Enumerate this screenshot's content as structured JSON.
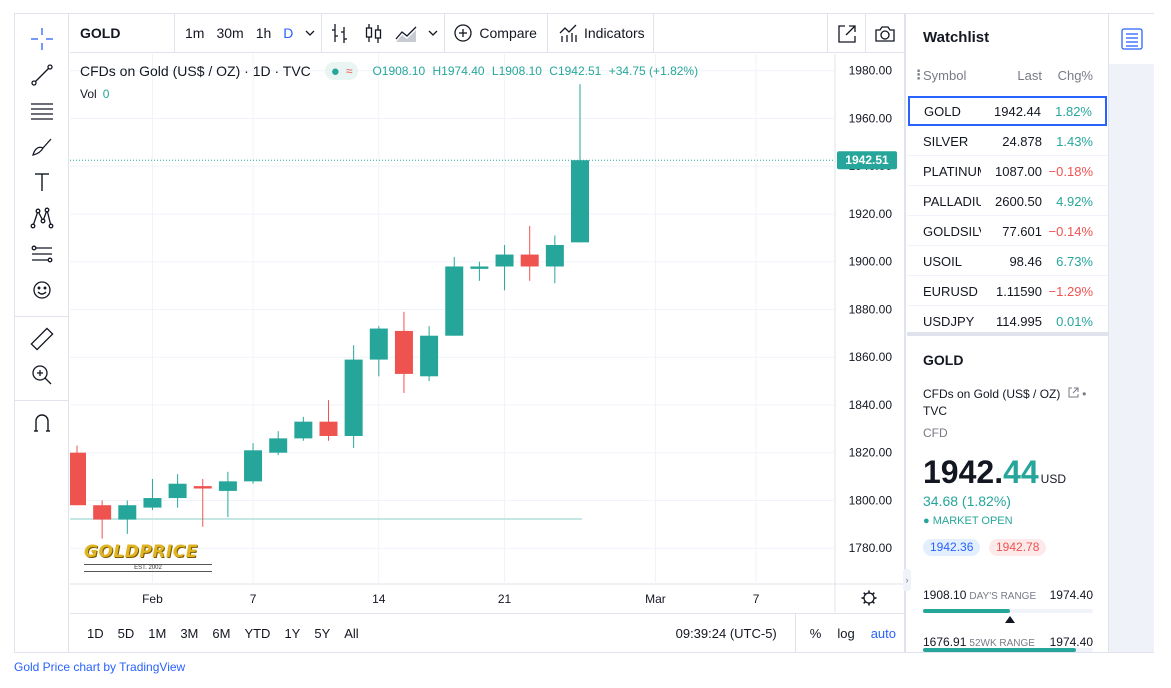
{
  "colors": {
    "up": "#26a69a",
    "down": "#ef5350",
    "accent": "#2962ff",
    "text": "#131722",
    "muted": "#787b86",
    "grid": "#f0f3fa"
  },
  "left_toolbar": {
    "tools": [
      {
        "name": "crosshair-icon"
      },
      {
        "name": "trend-line-icon"
      },
      {
        "name": "fib-retracement-icon"
      },
      {
        "name": "brush-icon"
      },
      {
        "name": "text-tool-icon"
      },
      {
        "name": "pattern-icon"
      },
      {
        "name": "prediction-icon"
      },
      {
        "name": "emoji-icon"
      },
      {
        "name": "ruler-icon"
      },
      {
        "name": "zoom-in-icon"
      },
      {
        "name": "magnet-icon"
      }
    ]
  },
  "top_toolbar": {
    "symbol": "GOLD",
    "intervals": [
      "1m",
      "30m",
      "1h",
      "D"
    ],
    "active_interval": "D",
    "compare_label": "Compare",
    "indicators_label": "Indicators"
  },
  "legend": {
    "title": "CFDs on Gold (US$ / OZ) · 1D · TVC",
    "market_symbol": "≈",
    "open": "O1908.10",
    "high": "H1974.40",
    "low": "L1908.10",
    "close": "C1942.51",
    "change": "+34.75 (+1.82%)",
    "vol_label": "Vol",
    "vol_value": "0"
  },
  "logo": {
    "brand": "GOLDPRICE",
    "tagline": "EST. 2002"
  },
  "chart_data": {
    "type": "candlestick",
    "y_ticks": [
      1780,
      1800,
      1820,
      1840,
      1860,
      1880,
      1900,
      1920,
      1940,
      1960,
      1980
    ],
    "ylim": [
      1765,
      1987
    ],
    "x_ticks": [
      {
        "label": "Feb",
        "index": 3
      },
      {
        "label": "7",
        "index": 7
      },
      {
        "label": "14",
        "index": 12
      },
      {
        "label": "21",
        "index": 17
      },
      {
        "label": "Mar",
        "index": 23
      },
      {
        "label": "7",
        "index": 27
      }
    ],
    "last_price_label": "1942.51",
    "last_price": 1942.51,
    "candles": [
      {
        "o": 1820,
        "h": 1823,
        "l": 1798,
        "c": 1798
      },
      {
        "o": 1798,
        "h": 1800,
        "l": 1784,
        "c": 1792
      },
      {
        "o": 1792,
        "h": 1800,
        "l": 1786,
        "c": 1798
      },
      {
        "o": 1797,
        "h": 1809,
        "l": 1796,
        "c": 1801
      },
      {
        "o": 1801,
        "h": 1811,
        "l": 1797,
        "c": 1807
      },
      {
        "o": 1806,
        "h": 1809,
        "l": 1789,
        "c": 1805
      },
      {
        "o": 1804,
        "h": 1812,
        "l": 1793,
        "c": 1808
      },
      {
        "o": 1808,
        "h": 1824,
        "l": 1807,
        "c": 1821
      },
      {
        "o": 1820,
        "h": 1829,
        "l": 1819,
        "c": 1826
      },
      {
        "o": 1826,
        "h": 1835,
        "l": 1825,
        "c": 1833
      },
      {
        "o": 1833,
        "h": 1842,
        "l": 1825,
        "c": 1827
      },
      {
        "o": 1827,
        "h": 1865,
        "l": 1822,
        "c": 1859
      },
      {
        "o": 1859,
        "h": 1873,
        "l": 1852,
        "c": 1872
      },
      {
        "o": 1871,
        "h": 1879,
        "l": 1845,
        "c": 1853
      },
      {
        "o": 1852,
        "h": 1873,
        "l": 1850,
        "c": 1869
      },
      {
        "o": 1869,
        "h": 1902,
        "l": 1869,
        "c": 1898
      },
      {
        "o": 1897,
        "h": 1900,
        "l": 1892,
        "c": 1898
      },
      {
        "o": 1898,
        "h": 1907,
        "l": 1888,
        "c": 1903
      },
      {
        "o": 1903,
        "h": 1915,
        "l": 1892,
        "c": 1898
      },
      {
        "o": 1898,
        "h": 1911,
        "l": 1891,
        "c": 1907
      },
      {
        "o": 1908.1,
        "h": 1974.4,
        "l": 1908.1,
        "c": 1942.51
      }
    ]
  },
  "bottom_toolbar": {
    "ranges": [
      "1D",
      "5D",
      "1M",
      "3M",
      "6M",
      "YTD",
      "1Y",
      "5Y",
      "All"
    ],
    "time": "09:39:24 (UTC-5)",
    "percent_label": "%",
    "log_label": "log",
    "auto_label": "auto"
  },
  "watchlist": {
    "title": "Watchlist",
    "columns": [
      "Symbol",
      "Last",
      "Chg%"
    ],
    "rows": [
      {
        "symbol": "GOLD",
        "last": "1942.44",
        "chg": "1.82%",
        "dir": "up"
      },
      {
        "symbol": "SILVER",
        "last": "24.878",
        "chg": "1.43%",
        "dir": "up"
      },
      {
        "symbol": "PLATINUM",
        "last": "1087.00",
        "chg": "−0.18%",
        "dir": "down"
      },
      {
        "symbol": "PALLADIUM",
        "last": "2600.50",
        "chg": "4.92%",
        "dir": "up"
      },
      {
        "symbol": "GOLDSILVER",
        "last": "77.601",
        "chg": "−0.14%",
        "dir": "down"
      },
      {
        "symbol": "USOIL",
        "last": "98.46",
        "chg": "6.73%",
        "dir": "up"
      },
      {
        "symbol": "EURUSD",
        "last": "1.11590",
        "chg": "−1.29%",
        "dir": "down"
      },
      {
        "symbol": "USDJPY",
        "last": "114.995",
        "chg": "0.01%",
        "dir": "up"
      }
    ]
  },
  "details": {
    "symbol": "GOLD",
    "description": "CFDs on Gold (US$ / OZ)",
    "exchange": "TVC",
    "type": "CFD",
    "price_int": "1942.",
    "price_dec": "44",
    "currency": "USD",
    "change": "34.68 (1.82%)",
    "status": "MARKET OPEN",
    "bid": "1942.36",
    "ask": "1942.78",
    "day_range": {
      "low": "1908.10",
      "label": "DAY'S RANGE",
      "high": "1974.40",
      "position": 0.51
    },
    "wk52_range": {
      "low": "1676.91",
      "label": "52WK RANGE",
      "high": "1974.40",
      "position": 0.9
    }
  },
  "footer": {
    "link": "Gold Price chart by TradingView"
  }
}
